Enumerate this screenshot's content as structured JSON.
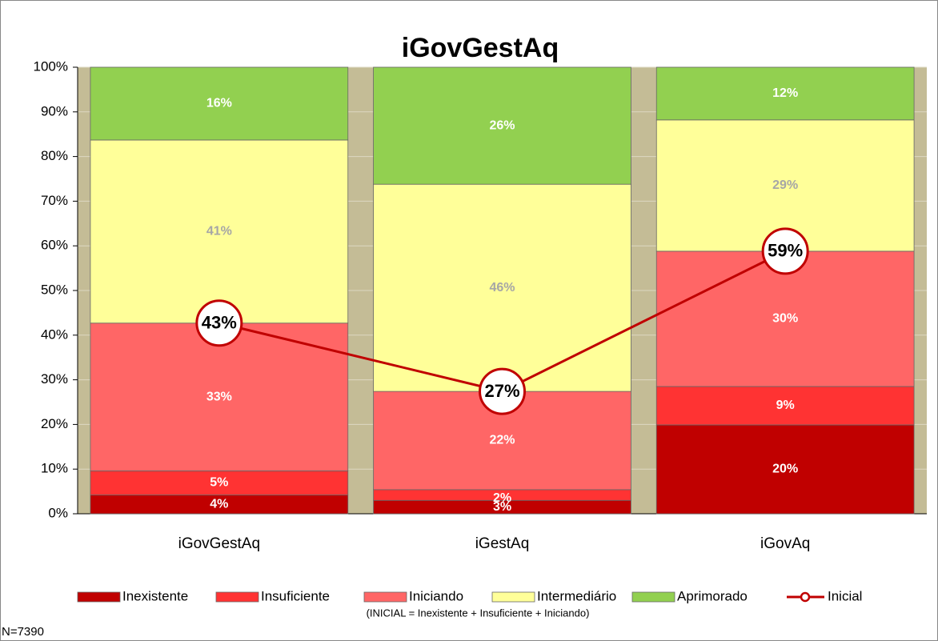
{
  "chart_data": {
    "type": "bar",
    "title": "iGovGestAq",
    "categories": [
      "iGovGestAq",
      "iGestAq",
      "iGovAq"
    ],
    "series": [
      {
        "name": "Inexistente",
        "color": "#c00000",
        "values": [
          4.2,
          3.0,
          19.9
        ],
        "value_labels": [
          "4%",
          "3%",
          "20%"
        ]
      },
      {
        "name": "Insuficiente",
        "color": "#ff3333",
        "values": [
          5.4,
          2.4,
          8.6
        ],
        "value_labels": [
          "5%",
          "2%",
          "9%"
        ]
      },
      {
        "name": "Iniciando",
        "color": "#ff6666",
        "values": [
          33.1,
          22.0,
          30.3
        ],
        "value_labels": [
          "33%",
          "22%",
          "30%"
        ]
      },
      {
        "name": "Intermediário",
        "color": "#ffff99",
        "values": [
          41.0,
          46.4,
          29.4
        ],
        "value_labels": [
          "41%",
          "46%",
          "29%"
        ]
      },
      {
        "name": "Aprimorado",
        "color": "#92d050",
        "values": [
          16.3,
          26.2,
          11.8
        ],
        "value_labels": [
          "16%",
          "26%",
          "12%"
        ]
      }
    ],
    "line_series": {
      "name": "Inicial",
      "color": "#c00000",
      "values": [
        42.7,
        27.4,
        58.8
      ],
      "value_labels": [
        "43%",
        "27%",
        "59%"
      ]
    },
    "ylim": [
      0,
      100
    ],
    "yticks": [
      {
        "value": 0,
        "label": "0%"
      },
      {
        "value": 10,
        "label": "10%"
      },
      {
        "value": 20,
        "label": "20%"
      },
      {
        "value": 30,
        "label": "30%"
      },
      {
        "value": 40,
        "label": "40%"
      },
      {
        "value": 50,
        "label": "50%"
      },
      {
        "value": 60,
        "label": "60%"
      },
      {
        "value": 70,
        "label": "70%"
      },
      {
        "value": 80,
        "label": "80%"
      },
      {
        "value": 90,
        "label": "90%"
      },
      {
        "value": 100,
        "label": "100%"
      }
    ],
    "grid": true,
    "legend": "bottom",
    "note": "(INICIAL = Inexistente + Insuficiente + Iniciando)",
    "footnote": "N=7390"
  }
}
